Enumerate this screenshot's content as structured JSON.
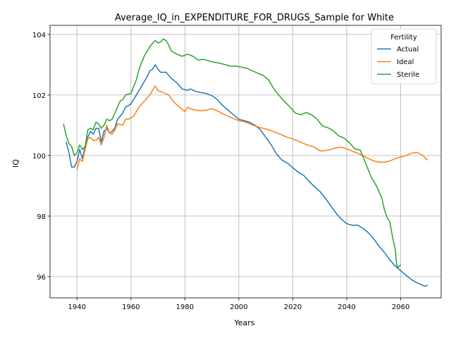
{
  "chart_data": {
    "type": "line",
    "title": "Average_IQ_in_EXPENDITURE_FOR_DRUGS_Sample for White",
    "xlabel": "Years",
    "ylabel": "IQ",
    "xlim": [
      1930,
      2075
    ],
    "ylim": [
      95.3,
      104.3
    ],
    "xticks": [
      1940,
      1960,
      1980,
      2000,
      2020,
      2040,
      2060
    ],
    "yticks": [
      96,
      98,
      100,
      102,
      104
    ],
    "grid": true,
    "legend": {
      "title": "Fertility",
      "position": "top-right"
    },
    "series": [
      {
        "name": "Actual",
        "color": "#1f77b4",
        "points": [
          [
            1936,
            100.45
          ],
          [
            1937,
            100.1
          ],
          [
            1938,
            99.62
          ],
          [
            1939,
            99.62
          ],
          [
            1940,
            99.8
          ],
          [
            1941,
            100.2
          ],
          [
            1942,
            99.9
          ],
          [
            1943,
            100.3
          ],
          [
            1944,
            100.6
          ],
          [
            1945,
            100.8
          ],
          [
            1946,
            100.7
          ],
          [
            1947,
            100.9
          ],
          [
            1948,
            100.9
          ],
          [
            1949,
            100.45
          ],
          [
            1950,
            100.8
          ],
          [
            1951,
            100.9
          ],
          [
            1952,
            100.75
          ],
          [
            1953,
            100.8
          ],
          [
            1954,
            100.9
          ],
          [
            1955,
            101.2
          ],
          [
            1956,
            101.3
          ],
          [
            1957,
            101.4
          ],
          [
            1958,
            101.6
          ],
          [
            1960,
            101.7
          ],
          [
            1962,
            102.0
          ],
          [
            1964,
            102.3
          ],
          [
            1966,
            102.6
          ],
          [
            1967,
            102.8
          ],
          [
            1968,
            102.85
          ],
          [
            1969,
            103.0
          ],
          [
            1970,
            102.85
          ],
          [
            1971,
            102.75
          ],
          [
            1973,
            102.75
          ],
          [
            1975,
            102.55
          ],
          [
            1977,
            102.4
          ],
          [
            1979,
            102.2
          ],
          [
            1981,
            102.15
          ],
          [
            1982,
            102.2
          ],
          [
            1984,
            102.12
          ],
          [
            1986,
            102.08
          ],
          [
            1988,
            102.05
          ],
          [
            1990,
            101.98
          ],
          [
            1992,
            101.85
          ],
          [
            1994,
            101.65
          ],
          [
            1996,
            101.5
          ],
          [
            1998,
            101.35
          ],
          [
            2000,
            101.2
          ],
          [
            2002,
            101.15
          ],
          [
            2004,
            101.1
          ],
          [
            2006,
            101.0
          ],
          [
            2008,
            100.85
          ],
          [
            2010,
            100.6
          ],
          [
            2012,
            100.35
          ],
          [
            2014,
            100.05
          ],
          [
            2016,
            99.85
          ],
          [
            2018,
            99.75
          ],
          [
            2020,
            99.6
          ],
          [
            2022,
            99.45
          ],
          [
            2024,
            99.35
          ],
          [
            2026,
            99.15
          ],
          [
            2028,
            98.98
          ],
          [
            2030,
            98.82
          ],
          [
            2032,
            98.6
          ],
          [
            2034,
            98.35
          ],
          [
            2036,
            98.1
          ],
          [
            2038,
            97.9
          ],
          [
            2040,
            97.75
          ],
          [
            2042,
            97.7
          ],
          [
            2044,
            97.7
          ],
          [
            2046,
            97.6
          ],
          [
            2048,
            97.45
          ],
          [
            2050,
            97.25
          ],
          [
            2052,
            97.0
          ],
          [
            2054,
            96.8
          ],
          [
            2056,
            96.55
          ],
          [
            2058,
            96.35
          ],
          [
            2060,
            96.2
          ],
          [
            2062,
            96.05
          ],
          [
            2064,
            95.9
          ],
          [
            2066,
            95.8
          ],
          [
            2068,
            95.72
          ],
          [
            2069,
            95.68
          ],
          [
            2070,
            95.72
          ]
        ]
      },
      {
        "name": "Ideal",
        "color": "#ff7f0e",
        "points": [
          [
            1940,
            99.52
          ],
          [
            1941,
            99.9
          ],
          [
            1942,
            99.8
          ],
          [
            1943,
            100.2
          ],
          [
            1944,
            100.55
          ],
          [
            1945,
            100.6
          ],
          [
            1946,
            100.5
          ],
          [
            1947,
            100.5
          ],
          [
            1948,
            100.6
          ],
          [
            1949,
            100.35
          ],
          [
            1950,
            100.6
          ],
          [
            1951,
            101.0
          ],
          [
            1952,
            100.75
          ],
          [
            1953,
            100.7
          ],
          [
            1954,
            100.85
          ],
          [
            1955,
            101.05
          ],
          [
            1957,
            101.0
          ],
          [
            1958,
            101.2
          ],
          [
            1959,
            101.2
          ],
          [
            1961,
            101.3
          ],
          [
            1963,
            101.6
          ],
          [
            1965,
            101.8
          ],
          [
            1967,
            102.0
          ],
          [
            1968,
            102.15
          ],
          [
            1969,
            102.3
          ],
          [
            1970,
            102.15
          ],
          [
            1972,
            102.08
          ],
          [
            1974,
            102.0
          ],
          [
            1976,
            101.75
          ],
          [
            1978,
            101.6
          ],
          [
            1980,
            101.45
          ],
          [
            1981,
            101.6
          ],
          [
            1982,
            101.55
          ],
          [
            1984,
            101.5
          ],
          [
            1986,
            101.48
          ],
          [
            1988,
            101.5
          ],
          [
            1990,
            101.55
          ],
          [
            1992,
            101.48
          ],
          [
            1994,
            101.38
          ],
          [
            1996,
            101.3
          ],
          [
            1998,
            101.22
          ],
          [
            2000,
            101.15
          ],
          [
            2002,
            101.12
          ],
          [
            2004,
            101.05
          ],
          [
            2006,
            100.98
          ],
          [
            2008,
            100.92
          ],
          [
            2010,
            100.88
          ],
          [
            2012,
            100.82
          ],
          [
            2014,
            100.75
          ],
          [
            2016,
            100.68
          ],
          [
            2018,
            100.6
          ],
          [
            2020,
            100.55
          ],
          [
            2022,
            100.48
          ],
          [
            2024,
            100.4
          ],
          [
            2026,
            100.33
          ],
          [
            2028,
            100.28
          ],
          [
            2030,
            100.15
          ],
          [
            2032,
            100.16
          ],
          [
            2034,
            100.2
          ],
          [
            2036,
            100.25
          ],
          [
            2038,
            100.28
          ],
          [
            2040,
            100.22
          ],
          [
            2042,
            100.15
          ],
          [
            2044,
            100.08
          ],
          [
            2046,
            100.0
          ],
          [
            2048,
            99.9
          ],
          [
            2050,
            99.82
          ],
          [
            2052,
            99.78
          ],
          [
            2054,
            99.78
          ],
          [
            2056,
            99.82
          ],
          [
            2058,
            99.9
          ],
          [
            2060,
            99.95
          ],
          [
            2062,
            100.0
          ],
          [
            2064,
            100.08
          ],
          [
            2066,
            100.1
          ],
          [
            2068,
            100.02
          ],
          [
            2070,
            99.85
          ]
        ]
      },
      {
        "name": "Sterile",
        "color": "#2ca02c",
        "points": [
          [
            1935,
            101.05
          ],
          [
            1936,
            100.65
          ],
          [
            1937,
            100.4
          ],
          [
            1938,
            100.3
          ],
          [
            1939,
            100.0
          ],
          [
            1940,
            100.1
          ],
          [
            1941,
            100.35
          ],
          [
            1942,
            100.2
          ],
          [
            1943,
            100.3
          ],
          [
            1944,
            100.85
          ],
          [
            1945,
            100.9
          ],
          [
            1946,
            100.85
          ],
          [
            1947,
            101.1
          ],
          [
            1948,
            101.05
          ],
          [
            1949,
            100.9
          ],
          [
            1950,
            101.0
          ],
          [
            1951,
            101.2
          ],
          [
            1952,
            101.15
          ],
          [
            1953,
            101.2
          ],
          [
            1954,
            101.4
          ],
          [
            1955,
            101.6
          ],
          [
            1956,
            101.8
          ],
          [
            1957,
            101.85
          ],
          [
            1958,
            102.0
          ],
          [
            1960,
            102.05
          ],
          [
            1962,
            102.5
          ],
          [
            1963,
            102.85
          ],
          [
            1965,
            103.3
          ],
          [
            1967,
            103.6
          ],
          [
            1968,
            103.7
          ],
          [
            1969,
            103.8
          ],
          [
            1970,
            103.72
          ],
          [
            1971,
            103.75
          ],
          [
            1972,
            103.85
          ],
          [
            1973,
            103.8
          ],
          [
            1974,
            103.65
          ],
          [
            1975,
            103.45
          ],
          [
            1977,
            103.35
          ],
          [
            1979,
            103.28
          ],
          [
            1981,
            103.35
          ],
          [
            1983,
            103.28
          ],
          [
            1985,
            103.15
          ],
          [
            1987,
            103.18
          ],
          [
            1989,
            103.12
          ],
          [
            1991,
            103.08
          ],
          [
            1993,
            103.05
          ],
          [
            1995,
            103.0
          ],
          [
            1997,
            102.95
          ],
          [
            1999,
            102.95
          ],
          [
            2001,
            102.92
          ],
          [
            2003,
            102.88
          ],
          [
            2005,
            102.8
          ],
          [
            2007,
            102.72
          ],
          [
            2009,
            102.65
          ],
          [
            2011,
            102.5
          ],
          [
            2013,
            102.2
          ],
          [
            2015,
            101.98
          ],
          [
            2017,
            101.78
          ],
          [
            2019,
            101.6
          ],
          [
            2021,
            101.4
          ],
          [
            2023,
            101.35
          ],
          [
            2025,
            101.42
          ],
          [
            2027,
            101.35
          ],
          [
            2029,
            101.2
          ],
          [
            2031,
            100.98
          ],
          [
            2033,
            100.92
          ],
          [
            2035,
            100.82
          ],
          [
            2037,
            100.65
          ],
          [
            2039,
            100.58
          ],
          [
            2041,
            100.42
          ],
          [
            2043,
            100.22
          ],
          [
            2045,
            100.18
          ],
          [
            2047,
            99.75
          ],
          [
            2049,
            99.3
          ],
          [
            2051,
            99.0
          ],
          [
            2053,
            98.6
          ],
          [
            2054,
            98.2
          ],
          [
            2055,
            97.95
          ],
          [
            2056,
            97.8
          ],
          [
            2057,
            97.3
          ],
          [
            2058,
            96.9
          ],
          [
            2058.5,
            96.4
          ],
          [
            2059,
            96.3
          ],
          [
            2060,
            96.4
          ]
        ]
      }
    ]
  }
}
